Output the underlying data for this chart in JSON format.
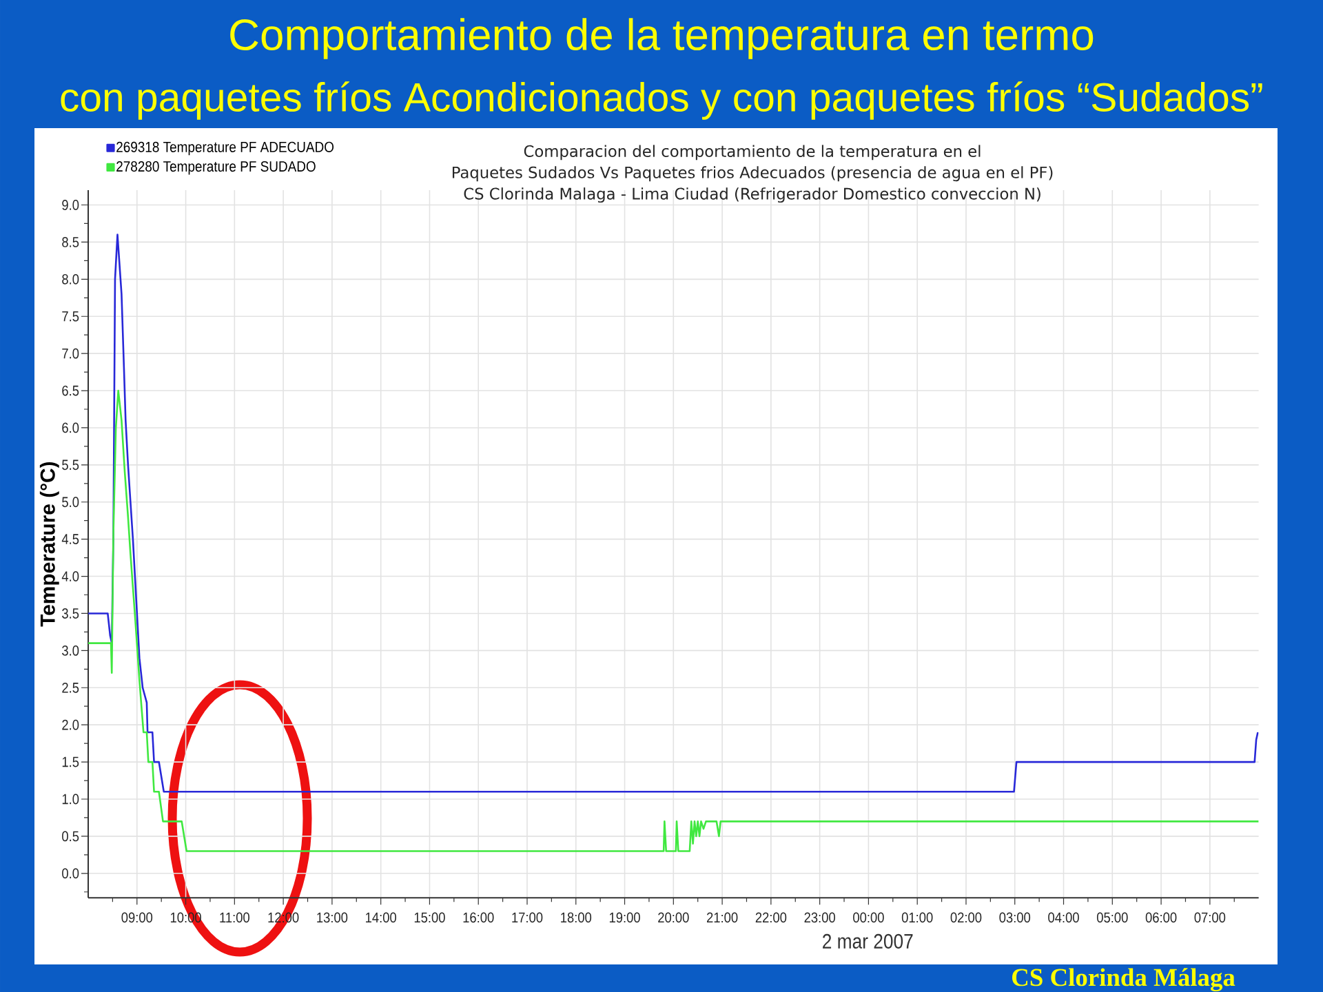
{
  "chart_data": {
    "type": "line",
    "title": "Comportamiento de la temperatura en termo",
    "subtitle": "con paquetes fríos Acondicionados y con paquetes fríos “Sudados”",
    "xlabel": "2 mar 2007",
    "ylabel": "Temperature (°C)",
    "annotations": [
      "Comparacion del comportamiento de la temperatura en el",
      "Paquetes Sudados Vs Paquetes frios Adecuados (presencia de agua en el PF)",
      "CS Clorinda Malaga - Lima Ciudad (Refrigerador Domestico conveccion N)",
      "CS Clorinda Málaga"
    ],
    "xlim": [
      "2007-03-01T08:00",
      "2007-03-02T08:00"
    ],
    "xticks": [
      {
        "value": "2007-03-01T08:30",
        "label": null
      },
      {
        "value": "2007-03-01T09:00",
        "label": "09:00"
      },
      {
        "value": "2007-03-01T09:30",
        "label": null
      },
      {
        "value": "2007-03-01T10:00",
        "label": "10:00"
      },
      {
        "value": "2007-03-01T10:30",
        "label": null
      },
      {
        "value": "2007-03-01T11:00",
        "label": "11:00"
      },
      {
        "value": "2007-03-01T11:30",
        "label": null
      },
      {
        "value": "2007-03-01T12:00",
        "label": "12:00"
      },
      {
        "value": "2007-03-01T12:30",
        "label": null
      },
      {
        "value": "2007-03-01T13:00",
        "label": "13:00"
      },
      {
        "value": "2007-03-01T13:30",
        "label": null
      },
      {
        "value": "2007-03-01T14:00",
        "label": "14:00"
      },
      {
        "value": "2007-03-01T14:30",
        "label": null
      },
      {
        "value": "2007-03-01T15:00",
        "label": "15:00"
      },
      {
        "value": "2007-03-01T15:30",
        "label": null
      },
      {
        "value": "2007-03-01T16:00",
        "label": "16:00"
      },
      {
        "value": "2007-03-01T16:30",
        "label": null
      },
      {
        "value": "2007-03-01T17:00",
        "label": "17:00"
      },
      {
        "value": "2007-03-01T17:30",
        "label": null
      },
      {
        "value": "2007-03-01T18:00",
        "label": "18:00"
      },
      {
        "value": "2007-03-01T18:30",
        "label": null
      },
      {
        "value": "2007-03-01T19:00",
        "label": "19:00"
      },
      {
        "value": "2007-03-01T19:30",
        "label": null
      },
      {
        "value": "2007-03-01T20:00",
        "label": "20:00"
      },
      {
        "value": "2007-03-01T20:30",
        "label": null
      },
      {
        "value": "2007-03-01T21:00",
        "label": "21:00"
      },
      {
        "value": "2007-03-01T21:30",
        "label": null
      },
      {
        "value": "2007-03-01T22:00",
        "label": "22:00"
      },
      {
        "value": "2007-03-01T22:30",
        "label": null
      },
      {
        "value": "2007-03-01T23:00",
        "label": "23:00"
      },
      {
        "value": "2007-03-01T23:30",
        "label": null
      },
      {
        "value": "2007-03-02T00:00",
        "label": "00:00"
      },
      {
        "value": "2007-03-02T00:30",
        "label": null
      },
      {
        "value": "2007-03-02T01:00",
        "label": "01:00"
      },
      {
        "value": "2007-03-02T01:30",
        "label": null
      },
      {
        "value": "2007-03-02T02:00",
        "label": "02:00"
      },
      {
        "value": "2007-03-02T02:30",
        "label": null
      },
      {
        "value": "2007-03-02T03:00",
        "label": "03:00"
      },
      {
        "value": "2007-03-02T03:30",
        "label": null
      },
      {
        "value": "2007-03-02T04:00",
        "label": "04:00"
      },
      {
        "value": "2007-03-02T04:30",
        "label": null
      },
      {
        "value": "2007-03-02T05:00",
        "label": "05:00"
      },
      {
        "value": "2007-03-02T05:30",
        "label": null
      },
      {
        "value": "2007-03-02T06:00",
        "label": "06:00"
      },
      {
        "value": "2007-03-02T06:30",
        "label": null
      },
      {
        "value": "2007-03-02T07:00",
        "label": "07:00"
      },
      {
        "value": "2007-03-02T07:30",
        "label": null
      }
    ],
    "ylim": [
      -0.33,
      9.2
    ],
    "yticks": [
      {
        "value": -0.25,
        "label": null
      },
      {
        "value": 0,
        "label": "0.0"
      },
      {
        "value": 0.25,
        "label": null
      },
      {
        "value": 0.5,
        "label": "0.5"
      },
      {
        "value": 0.75,
        "label": null
      },
      {
        "value": 1,
        "label": "1.0"
      },
      {
        "value": 1.25,
        "label": null
      },
      {
        "value": 1.5,
        "label": "1.5"
      },
      {
        "value": 1.75,
        "label": null
      },
      {
        "value": 2,
        "label": "2.0"
      },
      {
        "value": 2.25,
        "label": null
      },
      {
        "value": 2.5,
        "label": "2.5"
      },
      {
        "value": 2.75,
        "label": null
      },
      {
        "value": 3,
        "label": "3.0"
      },
      {
        "value": 3.25,
        "label": null
      },
      {
        "value": 3.5,
        "label": "3.5"
      },
      {
        "value": 3.75,
        "label": null
      },
      {
        "value": 4,
        "label": "4.0"
      },
      {
        "value": 4.25,
        "label": null
      },
      {
        "value": 4.5,
        "label": "4.5"
      },
      {
        "value": 4.75,
        "label": null
      },
      {
        "value": 5,
        "label": "5.0"
      },
      {
        "value": 5.25,
        "label": null
      },
      {
        "value": 5.5,
        "label": "5.5"
      },
      {
        "value": 5.75,
        "label": null
      },
      {
        "value": 6,
        "label": "6.0"
      },
      {
        "value": 6.25,
        "label": null
      },
      {
        "value": 6.5,
        "label": "6.5"
      },
      {
        "value": 6.75,
        "label": null
      },
      {
        "value": 7,
        "label": "7.0"
      },
      {
        "value": 7.25,
        "label": null
      },
      {
        "value": 7.5,
        "label": "7.5"
      },
      {
        "value": 7.75,
        "label": null
      },
      {
        "value": 8,
        "label": "8.0"
      },
      {
        "value": 8.25,
        "label": null
      },
      {
        "value": 8.5,
        "label": "8.5"
      },
      {
        "value": 8.75,
        "label": null
      },
      {
        "value": 9,
        "label": "9.0"
      }
    ],
    "grid": true,
    "legend": "top left",
    "series": [
      {
        "name": "269318 Temperature PF ADECUADO",
        "color": "#2828d8",
        "x": [
          "2007-03-01T08:00",
          "2007-03-01T08:24",
          "2007-03-01T08:27",
          "2007-03-01T08:29",
          "2007-03-01T08:31",
          "2007-03-01T08:33",
          "2007-03-01T08:36",
          "2007-03-01T08:41",
          "2007-03-01T08:44",
          "2007-03-01T08:46",
          "2007-03-01T08:49",
          "2007-03-01T08:52",
          "2007-03-01T08:55",
          "2007-03-01T08:59",
          "2007-03-01T09:03",
          "2007-03-01T09:07",
          "2007-03-01T09:12",
          "2007-03-01T09:13",
          "2007-03-01T09:19",
          "2007-03-01T09:21",
          "2007-03-01T09:27",
          "2007-03-01T09:33",
          "2007-03-02T02:59",
          "2007-03-02T03:02",
          "2007-03-02T07:55",
          "2007-03-02T07:57",
          "2007-03-02T07:59"
        ],
        "values": [
          3.5,
          3.5,
          3.2,
          3.1,
          4.6,
          8.0,
          8.6,
          7.8,
          6.8,
          6.1,
          5.5,
          5.0,
          4.5,
          3.7,
          2.9,
          2.5,
          2.3,
          1.9,
          1.9,
          1.5,
          1.5,
          1.1,
          1.1,
          1.5,
          1.5,
          1.8,
          1.9
        ]
      },
      {
        "name": "278280 Temperature PF SUDADO",
        "color": "#40e840",
        "x": [
          "2007-03-01T08:00",
          "2007-03-01T08:28",
          "2007-03-01T08:29",
          "2007-03-01T08:31",
          "2007-03-01T08:34",
          "2007-03-01T08:37",
          "2007-03-01T08:41",
          "2007-03-01T08:45",
          "2007-03-01T08:49",
          "2007-03-01T08:52",
          "2007-03-01T08:58",
          "2007-03-01T09:03",
          "2007-03-01T09:08",
          "2007-03-01T09:12",
          "2007-03-01T09:14",
          "2007-03-01T09:19",
          "2007-03-01T09:21",
          "2007-03-01T09:27",
          "2007-03-01T09:32",
          "2007-03-01T09:55",
          "2007-03-01T10:01",
          "2007-03-01T19:48",
          "2007-03-01T19:49",
          "2007-03-01T19:51",
          "2007-03-01T20:03",
          "2007-03-01T20:04",
          "2007-03-01T20:06",
          "2007-03-01T20:20",
          "2007-03-01T20:22",
          "2007-03-01T20:24",
          "2007-03-01T20:26",
          "2007-03-01T20:28",
          "2007-03-01T20:30",
          "2007-03-01T20:32",
          "2007-03-01T20:34",
          "2007-03-01T20:37",
          "2007-03-01T20:40",
          "2007-03-01T20:53",
          "2007-03-01T20:56",
          "2007-03-01T20:58",
          "2007-03-02T08:00"
        ],
        "values": [
          3.1,
          3.1,
          2.7,
          4.6,
          6.0,
          6.5,
          6.1,
          5.4,
          4.8,
          4.3,
          3.4,
          2.6,
          1.9,
          1.9,
          1.5,
          1.5,
          1.1,
          1.1,
          0.7,
          0.7,
          0.3,
          0.3,
          0.7,
          0.3,
          0.3,
          0.7,
          0.3,
          0.3,
          0.7,
          0.4,
          0.7,
          0.5,
          0.7,
          0.5,
          0.7,
          0.6,
          0.7,
          0.7,
          0.5,
          0.7,
          0.7
        ]
      }
    ]
  }
}
